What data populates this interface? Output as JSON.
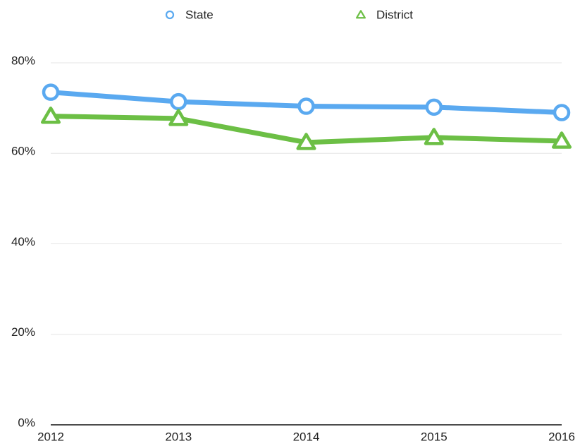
{
  "chart_data": {
    "type": "line",
    "categories": [
      "2012",
      "2013",
      "2014",
      "2015",
      "2016"
    ],
    "series": [
      {
        "name": "State",
        "color": "#5aa9f0",
        "marker": "circle",
        "values": [
          73.5,
          71.4,
          70.4,
          70.2,
          69.0
        ]
      },
      {
        "name": "District",
        "color": "#6cbf45",
        "marker": "triangle",
        "values": [
          68.2,
          67.7,
          62.4,
          63.5,
          62.7
        ]
      }
    ],
    "ylim": [
      0,
      80
    ],
    "yticks": [
      {
        "value": 0,
        "label": "0%"
      },
      {
        "value": 20,
        "label": "20%"
      },
      {
        "value": 40,
        "label": "40%"
      },
      {
        "value": 60,
        "label": "60%"
      },
      {
        "value": 80,
        "label": "80%"
      }
    ],
    "grid": true,
    "legend": "top"
  }
}
